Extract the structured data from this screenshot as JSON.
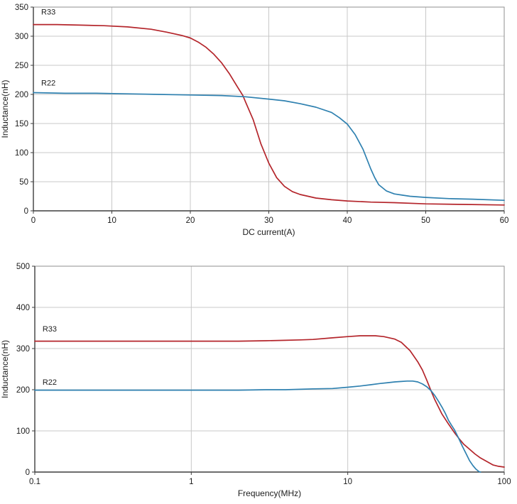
{
  "colors": {
    "background": "#ffffff",
    "grid": "#c8c8c8",
    "border": "#8f8f8f",
    "axis": "#3d3d3d",
    "text": "#1c1c1c",
    "r33": "#b4252b",
    "r22": "#2f81b0"
  },
  "chart_data": [
    {
      "id": "dc-bias",
      "type": "line",
      "title": "",
      "xlabel": "DC current(A)",
      "ylabel": "Inductance(nH)",
      "xscale": "linear",
      "xlim": [
        0,
        60
      ],
      "ylim": [
        0,
        350
      ],
      "xticks": [
        0,
        10,
        20,
        30,
        40,
        50,
        60
      ],
      "xtick_labels": [
        "0",
        "10",
        "20",
        "30",
        "40",
        "50",
        "60"
      ],
      "yticks": [
        0,
        50,
        100,
        150,
        200,
        250,
        300,
        350
      ],
      "ytick_labels": [
        "0",
        "50",
        "100",
        "150",
        "200",
        "250",
        "300",
        "350"
      ],
      "grid": true,
      "legend_position": "inline-annotations",
      "series": [
        {
          "name": "R33",
          "color": "#b4252b",
          "label_anchor": {
            "x": 1.0,
            "y": 337
          },
          "points": [
            [
              0,
              320
            ],
            [
              3,
              320
            ],
            [
              6,
              319
            ],
            [
              9,
              318
            ],
            [
              12,
              316
            ],
            [
              15,
              312
            ],
            [
              17,
              307
            ],
            [
              19,
              301
            ],
            [
              20,
              297
            ],
            [
              21,
              290
            ],
            [
              22,
              281
            ],
            [
              23,
              269
            ],
            [
              24,
              254
            ],
            [
              25,
              235
            ],
            [
              26,
              213
            ],
            [
              26.7,
              198
            ],
            [
              27,
              188
            ],
            [
              28,
              157
            ],
            [
              29,
              115
            ],
            [
              30,
              82
            ],
            [
              31,
              57
            ],
            [
              32,
              42
            ],
            [
              33,
              33
            ],
            [
              34,
              28
            ],
            [
              35,
              25
            ],
            [
              36,
              22
            ],
            [
              38,
              19
            ],
            [
              40,
              17
            ],
            [
              43,
              15
            ],
            [
              46,
              14
            ],
            [
              50,
              12
            ],
            [
              55,
              11
            ],
            [
              60,
              10
            ]
          ]
        },
        {
          "name": "R22",
          "color": "#2f81b0",
          "label_anchor": {
            "x": 1.0,
            "y": 215
          },
          "points": [
            [
              0,
              203
            ],
            [
              4,
              202
            ],
            [
              8,
              202
            ],
            [
              12,
              201
            ],
            [
              16,
              200
            ],
            [
              20,
              199
            ],
            [
              24,
              198
            ],
            [
              27,
              196
            ],
            [
              30,
              192
            ],
            [
              32,
              189
            ],
            [
              34,
              184
            ],
            [
              36,
              178
            ],
            [
              38,
              169
            ],
            [
              39,
              160
            ],
            [
              40,
              149
            ],
            [
              41,
              131
            ],
            [
              42,
              106
            ],
            [
              43,
              72
            ],
            [
              43.5,
              57
            ],
            [
              44,
              45
            ],
            [
              45,
              34
            ],
            [
              46,
              29
            ],
            [
              47,
              27
            ],
            [
              48,
              25
            ],
            [
              50,
              23
            ],
            [
              53,
              21
            ],
            [
              56,
              20
            ],
            [
              60,
              18
            ]
          ]
        }
      ]
    },
    {
      "id": "frequency",
      "type": "line",
      "title": "",
      "xlabel": "Frequency(MHz)",
      "ylabel": "Inductance(nH)",
      "xscale": "log",
      "xlim": [
        0.1,
        100
      ],
      "ylim": [
        0,
        500
      ],
      "xticks": [
        0.1,
        1,
        10,
        100
      ],
      "xtick_labels": [
        "0.1",
        "1",
        "10",
        "100"
      ],
      "yticks": [
        0,
        100,
        200,
        300,
        400,
        500
      ],
      "ytick_labels": [
        "0",
        "100",
        "200",
        "300",
        "400",
        "500"
      ],
      "grid": true,
      "legend_position": "inline-annotations",
      "series": [
        {
          "name": "R33",
          "color": "#b4252b",
          "label_anchor": {
            "x": 0.112,
            "y": 341
          },
          "points": [
            [
              0.1,
              318
            ],
            [
              0.2,
              318
            ],
            [
              0.4,
              318
            ],
            [
              0.7,
              318
            ],
            [
              1,
              318
            ],
            [
              1.5,
              318
            ],
            [
              2,
              318
            ],
            [
              3,
              319
            ],
            [
              4,
              320
            ],
            [
              5,
              321
            ],
            [
              6,
              322
            ],
            [
              8,
              326
            ],
            [
              10,
              329
            ],
            [
              12,
              331
            ],
            [
              15,
              331
            ],
            [
              17,
              329
            ],
            [
              20,
              323
            ],
            [
              22,
              315
            ],
            [
              25,
              295
            ],
            [
              28,
              268
            ],
            [
              30,
              248
            ],
            [
              32,
              223
            ],
            [
              34,
              198
            ],
            [
              36,
              176
            ],
            [
              38,
              158
            ],
            [
              40,
              141
            ],
            [
              44,
              117
            ],
            [
              48,
              96
            ],
            [
              51,
              83
            ],
            [
              55,
              68
            ],
            [
              59,
              58
            ],
            [
              65,
              44
            ],
            [
              70,
              35
            ],
            [
              78,
              25
            ],
            [
              85,
              17
            ],
            [
              92,
              14
            ],
            [
              100,
              12
            ]
          ]
        },
        {
          "name": "R22",
          "color": "#2f81b0",
          "label_anchor": {
            "x": 0.112,
            "y": 212
          },
          "points": [
            [
              0.1,
              199
            ],
            [
              0.3,
              199
            ],
            [
              0.6,
              199
            ],
            [
              1,
              199
            ],
            [
              1.5,
              199
            ],
            [
              2,
              199
            ],
            [
              3,
              200
            ],
            [
              4,
              200
            ],
            [
              5,
              201
            ],
            [
              6,
              202
            ],
            [
              8,
              203
            ],
            [
              10,
              206
            ],
            [
              12,
              209
            ],
            [
              14,
              212
            ],
            [
              16,
              215
            ],
            [
              18,
              217
            ],
            [
              20,
              219
            ],
            [
              22,
              220
            ],
            [
              24,
              221
            ],
            [
              26,
              221
            ],
            [
              28,
              219
            ],
            [
              30,
              214
            ],
            [
              32,
              207
            ],
            [
              34,
              198
            ],
            [
              36,
              186
            ],
            [
              38,
              172
            ],
            [
              40,
              158
            ],
            [
              42,
              143
            ],
            [
              44,
              126
            ],
            [
              46,
              114
            ],
            [
              48,
              103
            ],
            [
              51,
              83
            ],
            [
              54,
              63
            ],
            [
              57,
              45
            ],
            [
              60,
              28
            ],
            [
              63,
              16
            ],
            [
              66,
              7
            ],
            [
              69,
              1
            ],
            [
              70.5,
              0
            ]
          ]
        }
      ]
    }
  ]
}
